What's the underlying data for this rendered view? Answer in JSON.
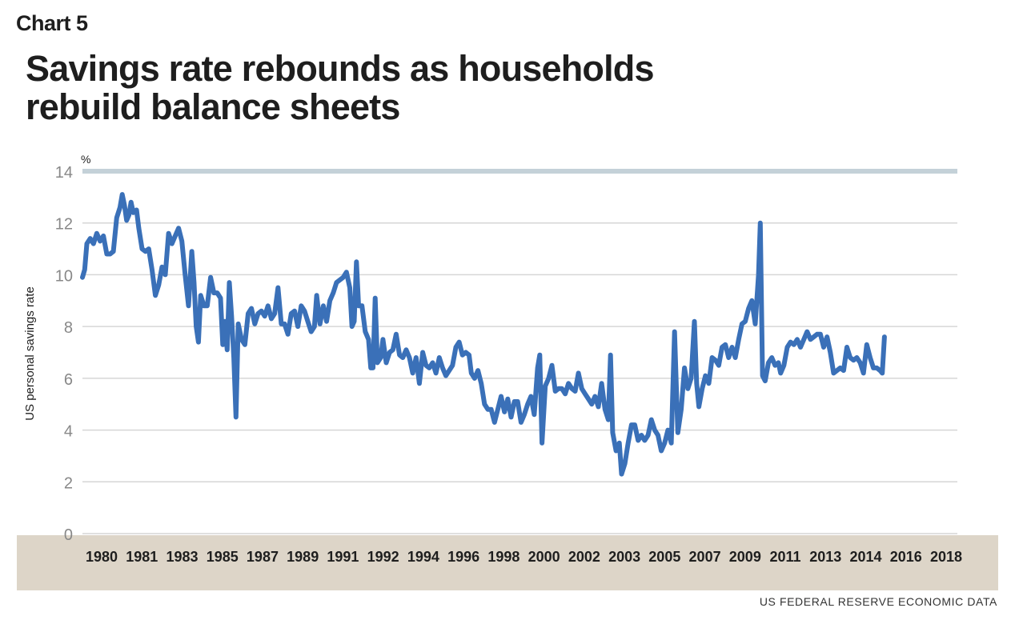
{
  "header": {
    "label": "Chart 5",
    "title_line1": "Savings rate rebounds as households",
    "title_line2": "rebuild balance sheets"
  },
  "source": "US FEDERAL RESERVE ECONOMIC DATA",
  "colors": {
    "line": "#3a70b8",
    "grid": "#d6d6d6",
    "top_band": "#c4d1d8",
    "axis_band": "#ddd5c8",
    "text": "#1e1e1e",
    "tick": "#888888"
  },
  "chart_data": {
    "type": "line",
    "title": "Savings rate rebounds as households rebuild balance sheets",
    "xlabel": "",
    "ylabel": "US personal savings rate",
    "y_unit": "%",
    "ylim": [
      0,
      14
    ],
    "yticks": [
      0,
      2,
      4,
      6,
      8,
      10,
      12,
      14
    ],
    "xlim": [
      1980,
      2019.6
    ],
    "xtick_labels": [
      "1980",
      "1981",
      "1983",
      "1985",
      "1987",
      "1989",
      "1991",
      "1992",
      "1994",
      "1996",
      "1998",
      "2000",
      "2002",
      "2003",
      "2005",
      "2007",
      "2009",
      "2011",
      "2013",
      "2014",
      "2016",
      "2018"
    ],
    "grid": true,
    "legend": "none",
    "series": [
      {
        "values": [
          [
            1980.0,
            9.9
          ],
          [
            1980.1,
            10.2
          ],
          [
            1980.2,
            11.2
          ],
          [
            1980.35,
            11.4
          ],
          [
            1980.5,
            11.2
          ],
          [
            1980.65,
            11.6
          ],
          [
            1980.8,
            11.3
          ],
          [
            1980.95,
            11.5
          ],
          [
            1981.1,
            10.8
          ],
          [
            1981.25,
            10.8
          ],
          [
            1981.4,
            10.9
          ],
          [
            1981.55,
            12.2
          ],
          [
            1981.7,
            12.6
          ],
          [
            1981.8,
            13.1
          ],
          [
            1981.9,
            12.7
          ],
          [
            1982.0,
            12.1
          ],
          [
            1982.1,
            12.3
          ],
          [
            1982.2,
            12.8
          ],
          [
            1982.3,
            12.4
          ],
          [
            1982.45,
            12.5
          ],
          [
            1982.55,
            11.8
          ],
          [
            1982.7,
            11.0
          ],
          [
            1982.85,
            10.9
          ],
          [
            1983.0,
            11.0
          ],
          [
            1983.15,
            10.2
          ],
          [
            1983.3,
            9.2
          ],
          [
            1983.45,
            9.6
          ],
          [
            1983.6,
            10.3
          ],
          [
            1983.75,
            10.0
          ],
          [
            1983.9,
            11.6
          ],
          [
            1984.05,
            11.2
          ],
          [
            1984.2,
            11.5
          ],
          [
            1984.35,
            11.8
          ],
          [
            1984.5,
            11.3
          ],
          [
            1984.65,
            10.0
          ],
          [
            1984.8,
            8.8
          ],
          [
            1984.95,
            10.9
          ],
          [
            1985.05,
            9.7
          ],
          [
            1985.15,
            8.0
          ],
          [
            1985.25,
            7.4
          ],
          [
            1985.35,
            9.2
          ],
          [
            1985.5,
            8.8
          ],
          [
            1985.65,
            8.8
          ],
          [
            1985.8,
            9.9
          ],
          [
            1985.95,
            9.3
          ],
          [
            1986.1,
            9.3
          ],
          [
            1986.25,
            9.1
          ],
          [
            1986.35,
            7.3
          ],
          [
            1986.45,
            8.2
          ],
          [
            1986.55,
            7.1
          ],
          [
            1986.65,
            9.7
          ],
          [
            1986.75,
            8.4
          ],
          [
            1986.85,
            6.8
          ],
          [
            1986.95,
            4.5
          ],
          [
            1987.05,
            8.1
          ],
          [
            1987.2,
            7.5
          ],
          [
            1987.35,
            7.3
          ],
          [
            1987.5,
            8.5
          ],
          [
            1987.65,
            8.7
          ],
          [
            1987.8,
            8.1
          ],
          [
            1987.95,
            8.5
          ],
          [
            1988.1,
            8.6
          ],
          [
            1988.25,
            8.4
          ],
          [
            1988.4,
            8.8
          ],
          [
            1988.55,
            8.3
          ],
          [
            1988.7,
            8.5
          ],
          [
            1988.85,
            9.5
          ],
          [
            1989.0,
            8.1
          ],
          [
            1989.15,
            8.1
          ],
          [
            1989.3,
            7.7
          ],
          [
            1989.45,
            8.5
          ],
          [
            1989.6,
            8.6
          ],
          [
            1989.75,
            8.0
          ],
          [
            1989.9,
            8.8
          ],
          [
            1990.05,
            8.6
          ],
          [
            1990.2,
            8.2
          ],
          [
            1990.35,
            7.8
          ],
          [
            1990.5,
            8.0
          ],
          [
            1990.6,
            9.2
          ],
          [
            1990.75,
            8.1
          ],
          [
            1990.9,
            8.8
          ],
          [
            1991.05,
            8.2
          ],
          [
            1991.2,
            9.0
          ],
          [
            1991.35,
            9.3
          ],
          [
            1991.5,
            9.7
          ],
          [
            1991.65,
            9.8
          ],
          [
            1991.8,
            9.9
          ],
          [
            1991.95,
            10.1
          ],
          [
            1992.1,
            9.5
          ],
          [
            1992.2,
            8.0
          ],
          [
            1992.3,
            8.2
          ],
          [
            1992.4,
            10.5
          ],
          [
            1992.5,
            8.8
          ],
          [
            1992.65,
            8.8
          ],
          [
            1992.8,
            7.8
          ],
          [
            1992.95,
            7.5
          ],
          [
            1993.05,
            6.4
          ],
          [
            1993.15,
            6.4
          ],
          [
            1993.25,
            9.1
          ],
          [
            1993.35,
            6.6
          ],
          [
            1993.5,
            6.8
          ],
          [
            1993.6,
            7.5
          ],
          [
            1993.75,
            6.6
          ],
          [
            1993.9,
            7.0
          ],
          [
            1994.05,
            7.1
          ],
          [
            1994.2,
            7.7
          ],
          [
            1994.35,
            6.9
          ],
          [
            1994.5,
            6.8
          ],
          [
            1994.65,
            7.1
          ],
          [
            1994.8,
            6.8
          ],
          [
            1994.95,
            6.2
          ],
          [
            1995.1,
            6.8
          ],
          [
            1995.25,
            5.8
          ],
          [
            1995.4,
            7.0
          ],
          [
            1995.55,
            6.5
          ],
          [
            1995.7,
            6.4
          ],
          [
            1995.85,
            6.6
          ],
          [
            1996.0,
            6.2
          ],
          [
            1996.15,
            6.8
          ],
          [
            1996.3,
            6.4
          ],
          [
            1996.45,
            6.1
          ],
          [
            1996.6,
            6.3
          ],
          [
            1996.75,
            6.5
          ],
          [
            1996.9,
            7.2
          ],
          [
            1997.05,
            7.4
          ],
          [
            1997.2,
            6.9
          ],
          [
            1997.35,
            7.0
          ],
          [
            1997.5,
            6.9
          ],
          [
            1997.6,
            6.2
          ],
          [
            1997.75,
            6.0
          ],
          [
            1997.9,
            6.3
          ],
          [
            1998.05,
            5.8
          ],
          [
            1998.2,
            5.0
          ],
          [
            1998.35,
            4.8
          ],
          [
            1998.5,
            4.8
          ],
          [
            1998.65,
            4.3
          ],
          [
            1998.8,
            4.8
          ],
          [
            1998.95,
            5.3
          ],
          [
            1999.1,
            4.7
          ],
          [
            1999.25,
            5.2
          ],
          [
            1999.4,
            4.5
          ],
          [
            1999.55,
            5.1
          ],
          [
            1999.7,
            5.1
          ],
          [
            1999.85,
            4.3
          ],
          [
            2000.0,
            4.6
          ],
          [
            2000.15,
            5.0
          ],
          [
            2000.3,
            5.3
          ],
          [
            2000.45,
            4.6
          ],
          [
            2000.6,
            6.4
          ],
          [
            2000.7,
            6.9
          ],
          [
            2000.8,
            3.5
          ],
          [
            2000.95,
            5.7
          ],
          [
            2001.1,
            6.0
          ],
          [
            2001.25,
            6.5
          ],
          [
            2001.4,
            5.5
          ],
          [
            2001.55,
            5.6
          ],
          [
            2001.7,
            5.6
          ],
          [
            2001.85,
            5.4
          ],
          [
            2002.0,
            5.8
          ],
          [
            2002.15,
            5.6
          ],
          [
            2002.3,
            5.5
          ],
          [
            2002.45,
            6.2
          ],
          [
            2002.6,
            5.6
          ],
          [
            2002.75,
            5.4
          ],
          [
            2002.9,
            5.2
          ],
          [
            2003.05,
            5.0
          ],
          [
            2003.2,
            5.3
          ],
          [
            2003.35,
            4.9
          ],
          [
            2003.5,
            5.8
          ],
          [
            2003.65,
            4.8
          ],
          [
            2003.8,
            4.4
          ],
          [
            2003.9,
            6.9
          ],
          [
            2004.0,
            3.9
          ],
          [
            2004.15,
            3.2
          ],
          [
            2004.3,
            3.5
          ],
          [
            2004.4,
            2.3
          ],
          [
            2004.55,
            2.7
          ],
          [
            2004.7,
            3.5
          ],
          [
            2004.85,
            4.2
          ],
          [
            2005.0,
            4.2
          ],
          [
            2005.15,
            3.6
          ],
          [
            2005.3,
            3.8
          ],
          [
            2005.45,
            3.6
          ],
          [
            2005.6,
            3.8
          ],
          [
            2005.75,
            4.4
          ],
          [
            2005.9,
            4.0
          ],
          [
            2006.05,
            3.8
          ],
          [
            2006.2,
            3.2
          ],
          [
            2006.35,
            3.5
          ],
          [
            2006.5,
            4.0
          ],
          [
            2006.65,
            3.5
          ],
          [
            2006.8,
            7.8
          ],
          [
            2006.95,
            3.9
          ],
          [
            2007.1,
            4.8
          ],
          [
            2007.25,
            6.4
          ],
          [
            2007.4,
            5.6
          ],
          [
            2007.55,
            6.0
          ],
          [
            2007.7,
            8.2
          ],
          [
            2007.8,
            5.8
          ],
          [
            2007.9,
            4.9
          ],
          [
            2008.05,
            5.6
          ],
          [
            2008.2,
            6.1
          ],
          [
            2008.35,
            5.8
          ],
          [
            2008.5,
            6.8
          ],
          [
            2008.65,
            6.7
          ],
          [
            2008.8,
            6.5
          ],
          [
            2008.95,
            7.2
          ],
          [
            2009.1,
            7.3
          ],
          [
            2009.25,
            6.8
          ],
          [
            2009.4,
            7.2
          ],
          [
            2009.55,
            6.8
          ],
          [
            2009.7,
            7.5
          ],
          [
            2009.85,
            8.1
          ],
          [
            2010.0,
            8.2
          ],
          [
            2010.15,
            8.7
          ],
          [
            2010.3,
            9.0
          ],
          [
            2010.45,
            8.1
          ],
          [
            2010.6,
            10.0
          ],
          [
            2010.68,
            12.0
          ],
          [
            2010.78,
            6.1
          ],
          [
            2010.9,
            5.9
          ],
          [
            2011.05,
            6.6
          ],
          [
            2011.2,
            6.8
          ],
          [
            2011.35,
            6.5
          ],
          [
            2011.5,
            6.6
          ],
          [
            2011.6,
            6.2
          ],
          [
            2011.75,
            6.5
          ],
          [
            2011.9,
            7.2
          ],
          [
            2012.05,
            7.4
          ],
          [
            2012.2,
            7.3
          ],
          [
            2012.35,
            7.5
          ],
          [
            2012.5,
            7.2
          ],
          [
            2012.65,
            7.5
          ],
          [
            2012.8,
            7.8
          ],
          [
            2012.95,
            7.5
          ],
          [
            2013.1,
            7.6
          ],
          [
            2013.25,
            7.7
          ],
          [
            2013.4,
            7.7
          ],
          [
            2013.55,
            7.2
          ],
          [
            2013.7,
            7.6
          ],
          [
            2013.85,
            7.0
          ],
          [
            2014.0,
            6.2
          ],
          [
            2014.15,
            6.3
          ],
          [
            2014.3,
            6.4
          ],
          [
            2014.45,
            6.3
          ],
          [
            2014.6,
            7.2
          ],
          [
            2014.75,
            6.8
          ],
          [
            2014.9,
            6.7
          ],
          [
            2015.05,
            6.8
          ],
          [
            2015.2,
            6.6
          ],
          [
            2015.35,
            6.2
          ],
          [
            2015.5,
            7.3
          ],
          [
            2015.65,
            6.8
          ],
          [
            2015.8,
            6.4
          ],
          [
            2015.95,
            6.4
          ],
          [
            2016.1,
            6.3
          ],
          [
            2016.2,
            6.2
          ],
          [
            2016.3,
            7.6
          ]
        ]
      }
    ]
  }
}
